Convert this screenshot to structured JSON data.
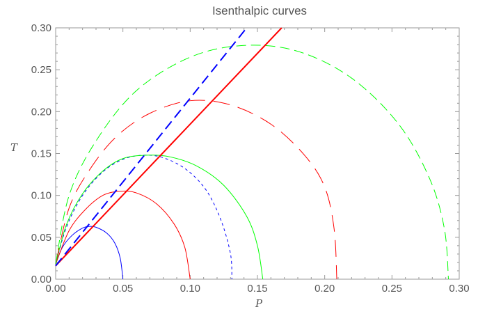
{
  "chart_data": {
    "type": "line",
    "title": "Isenthalpic curves",
    "xlabel": "P",
    "ylabel": "T",
    "xlim": [
      0,
      0.3
    ],
    "ylim": [
      0,
      0.3
    ],
    "x_ticks": [
      "0.00",
      "0.05",
      "0.10",
      "0.15",
      "0.20",
      "0.25",
      "0.30"
    ],
    "y_ticks": [
      "0.00",
      "0.05",
      "0.10",
      "0.15",
      "0.20",
      "0.25",
      "0.30"
    ],
    "grid": false,
    "legend": "none",
    "series": [
      {
        "kind": "arc",
        "color": "#0000ff",
        "style": "solid",
        "width": 1,
        "points": [
          [
            0.0,
            0.018
          ],
          [
            0.005,
            0.038
          ],
          [
            0.012,
            0.052
          ],
          [
            0.02,
            0.061
          ],
          [
            0.025,
            0.063
          ],
          [
            0.03,
            0.062
          ],
          [
            0.038,
            0.055
          ],
          [
            0.044,
            0.043
          ],
          [
            0.048,
            0.025
          ],
          [
            0.05,
            0.0
          ]
        ]
      },
      {
        "kind": "arc",
        "color": "#ff0000",
        "style": "solid",
        "width": 1,
        "points": [
          [
            0.0,
            0.018
          ],
          [
            0.01,
            0.058
          ],
          [
            0.022,
            0.083
          ],
          [
            0.035,
            0.1
          ],
          [
            0.048,
            0.105
          ],
          [
            0.06,
            0.103
          ],
          [
            0.075,
            0.09
          ],
          [
            0.088,
            0.066
          ],
          [
            0.096,
            0.038
          ],
          [
            0.1,
            0.0
          ]
        ]
      },
      {
        "kind": "arc",
        "color": "#0000ff",
        "style": "dotted",
        "width": 1,
        "points": [
          [
            0.0,
            0.018
          ],
          [
            0.008,
            0.062
          ],
          [
            0.02,
            0.1
          ],
          [
            0.035,
            0.128
          ],
          [
            0.05,
            0.143
          ],
          [
            0.065,
            0.148
          ],
          [
            0.08,
            0.145
          ],
          [
            0.097,
            0.131
          ],
          [
            0.112,
            0.106
          ],
          [
            0.123,
            0.07
          ],
          [
            0.13,
            0.03
          ],
          [
            0.131,
            0.0
          ]
        ]
      },
      {
        "kind": "arc",
        "color": "#00ff00",
        "style": "solid",
        "width": 1,
        "points": [
          [
            0.0,
            0.018
          ],
          [
            0.008,
            0.065
          ],
          [
            0.02,
            0.102
          ],
          [
            0.035,
            0.129
          ],
          [
            0.05,
            0.144
          ],
          [
            0.068,
            0.148
          ],
          [
            0.085,
            0.146
          ],
          [
            0.105,
            0.135
          ],
          [
            0.125,
            0.112
          ],
          [
            0.142,
            0.075
          ],
          [
            0.15,
            0.04
          ],
          [
            0.154,
            0.0
          ]
        ]
      },
      {
        "kind": "arc",
        "color": "#ff0000",
        "style": "long-dashed",
        "width": 1,
        "points": [
          [
            0.0,
            0.018
          ],
          [
            0.01,
            0.085
          ],
          [
            0.025,
            0.13
          ],
          [
            0.045,
            0.17
          ],
          [
            0.07,
            0.198
          ],
          [
            0.1,
            0.213
          ],
          [
            0.13,
            0.208
          ],
          [
            0.16,
            0.185
          ],
          [
            0.185,
            0.148
          ],
          [
            0.2,
            0.11
          ],
          [
            0.207,
            0.06
          ],
          [
            0.209,
            0.0
          ]
        ]
      },
      {
        "kind": "arc",
        "color": "#00ff00",
        "style": "dashed",
        "width": 1,
        "points": [
          [
            0.0,
            0.018
          ],
          [
            0.01,
            0.1
          ],
          [
            0.03,
            0.165
          ],
          [
            0.06,
            0.225
          ],
          [
            0.1,
            0.265
          ],
          [
            0.14,
            0.279
          ],
          [
            0.18,
            0.272
          ],
          [
            0.22,
            0.24
          ],
          [
            0.255,
            0.185
          ],
          [
            0.278,
            0.12
          ],
          [
            0.289,
            0.06
          ],
          [
            0.292,
            0.0
          ]
        ]
      },
      {
        "kind": "line",
        "color": "#ff0000",
        "style": "solid",
        "width": 2,
        "points": [
          [
            0.0,
            0.016
          ],
          [
            0.168,
            0.3
          ]
        ]
      },
      {
        "kind": "line",
        "color": "#0000ff",
        "style": "dashed",
        "width": 2,
        "points": [
          [
            0.0,
            0.016
          ],
          [
            0.142,
            0.3
          ]
        ]
      }
    ]
  }
}
